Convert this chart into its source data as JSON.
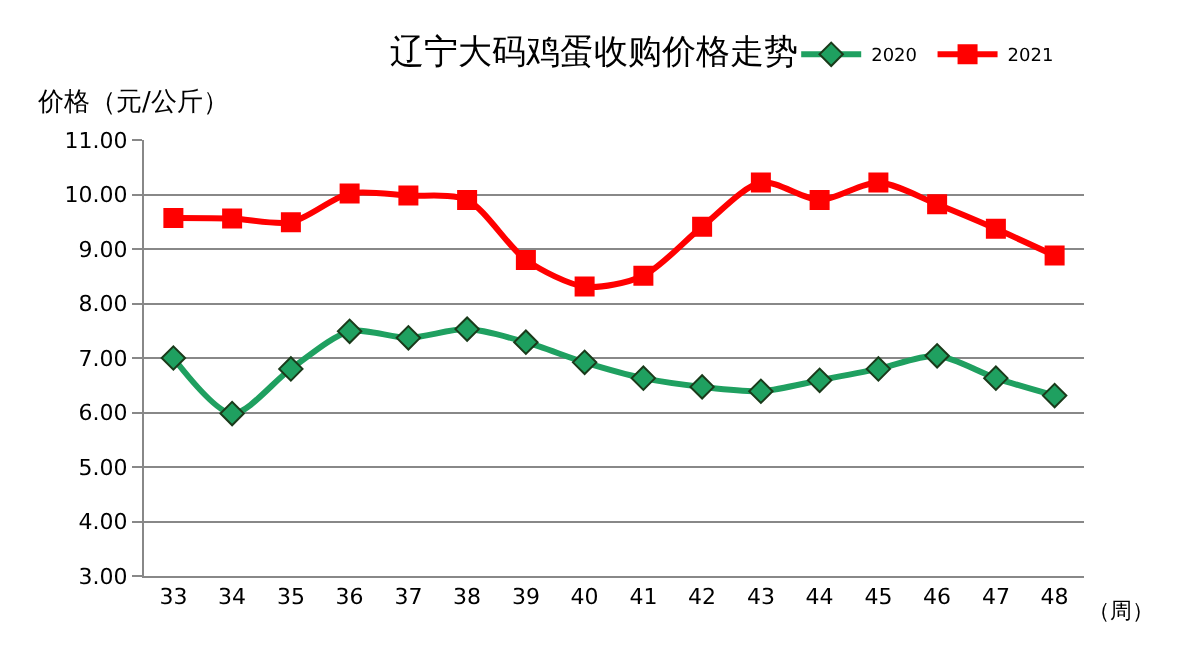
{
  "chart_data": {
    "type": "line",
    "title": "辽宁大码鸡蛋收购价格走势",
    "ylabel": "价格（元/公斤）",
    "xlabel": "（周）",
    "categories": [
      "33",
      "34",
      "35",
      "36",
      "37",
      "38",
      "39",
      "40",
      "41",
      "42",
      "43",
      "44",
      "45",
      "46",
      "47",
      "48"
    ],
    "series": [
      {
        "name": "2020",
        "color": "#1fa060",
        "marker": "diamond",
        "values": [
          7.0,
          5.98,
          6.8,
          7.49,
          7.37,
          7.53,
          7.29,
          6.92,
          6.63,
          6.47,
          6.39,
          6.59,
          6.8,
          7.04,
          6.63,
          6.31
        ]
      },
      {
        "name": "2021",
        "color": "#ff0000",
        "marker": "square",
        "values": [
          9.57,
          9.56,
          9.49,
          10.02,
          9.98,
          9.9,
          8.8,
          8.31,
          8.51,
          9.41,
          10.22,
          9.9,
          10.22,
          9.82,
          9.37,
          8.88
        ]
      }
    ],
    "ylim": [
      3,
      11
    ],
    "yticks": [
      {
        "value": 3,
        "label": "3.00"
      },
      {
        "value": 4,
        "label": "4.00"
      },
      {
        "value": 5,
        "label": "5.00"
      },
      {
        "value": 6,
        "label": "6.00"
      },
      {
        "value": 7,
        "label": "7.00"
      },
      {
        "value": 8,
        "label": "8.00"
      },
      {
        "value": 9,
        "label": "9.00"
      },
      {
        "value": 10,
        "label": "10.00"
      },
      {
        "value": 11,
        "label": "11.00"
      }
    ],
    "grid": "y",
    "legend": "top right",
    "line_style": "solid"
  }
}
